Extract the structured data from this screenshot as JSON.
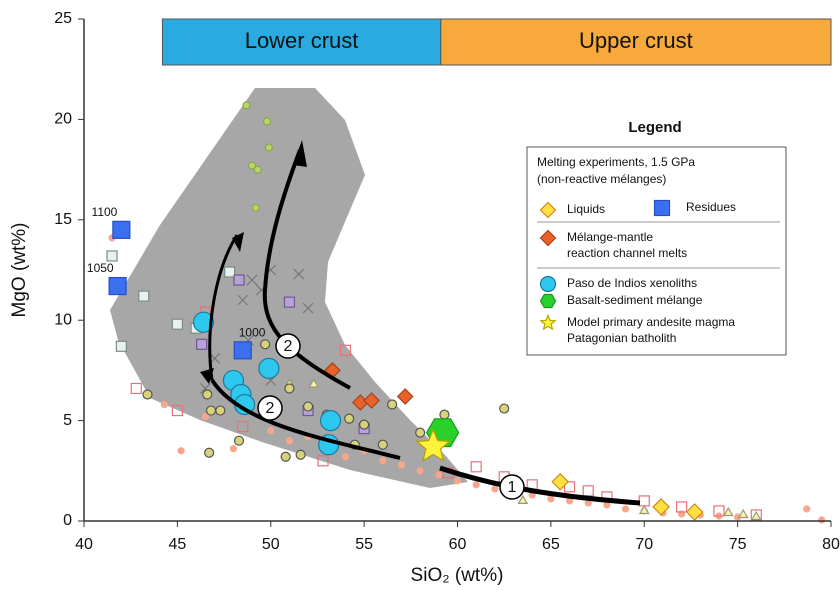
{
  "chart_data": {
    "type": "scatter",
    "xlabel": "SiO₂ (wt%)",
    "ylabel": "MgO (wt%)",
    "xlim": [
      40,
      80
    ],
    "ylim": [
      0,
      25
    ],
    "xticks": [
      40,
      45,
      50,
      55,
      60,
      65,
      70,
      75,
      80
    ],
    "yticks": [
      0,
      5,
      10,
      15,
      20,
      25
    ],
    "regions": [
      {
        "label": "Lower crust",
        "color": "#29abe2",
        "xlim": [
          44.2,
          59.1
        ]
      },
      {
        "label": "Upper crust",
        "color": "#f7a93b",
        "xlim": [
          59.1,
          80
        ]
      }
    ],
    "annotations": [
      "1",
      "2",
      "2"
    ],
    "legend_title": "Legend",
    "legend_note": [
      "Melting experiments, 1.5 GPa",
      "(non-reactive mélanges)"
    ],
    "series": [
      {
        "color": "#f6a68c",
        "edgecolor": "#f6a68c",
        "marker": "circle",
        "size": 3,
        "x": [
          41.5,
          45.2,
          46.5,
          50,
          51,
          52,
          53,
          54,
          55,
          56,
          57,
          58,
          59,
          60,
          61,
          62,
          63,
          64,
          65,
          66,
          67,
          68,
          69,
          70,
          71,
          72,
          73,
          74,
          75,
          76,
          78.7,
          79.5,
          44.3,
          48
        ],
        "values": [
          14.1,
          3.5,
          5.2,
          4.5,
          4,
          4.2,
          3.5,
          3.2,
          3.5,
          3,
          2.8,
          2.5,
          2.3,
          2,
          1.8,
          1.6,
          1.5,
          1.3,
          1.1,
          1,
          0.9,
          0.8,
          0.6,
          0.5,
          0.4,
          0.35,
          0.3,
          0.25,
          0.2,
          0.15,
          0.6,
          0.05,
          5.8,
          3.6
        ]
      },
      {
        "color": "none",
        "edgecolor": "#e8707a",
        "marker": "square",
        "size": 5,
        "x": [
          42.8,
          45,
          54,
          59.5,
          61,
          62.5,
          64,
          66,
          67,
          68,
          70,
          72,
          74,
          76,
          46.5,
          48.5,
          52.8
        ],
        "values": [
          6.6,
          5.5,
          8.5,
          2.4,
          2.7,
          2.2,
          1.8,
          1.7,
          1.5,
          1.2,
          1,
          0.7,
          0.5,
          0.3,
          10.4,
          4.7,
          3
        ]
      },
      {
        "color": "#e9f1ef",
        "edgecolor": "#7a8a88",
        "marker": "square",
        "size": 5,
        "x": [
          41.5,
          42,
          43.2,
          45,
          47.8,
          46
        ],
        "values": [
          13.2,
          8.7,
          11.2,
          9.8,
          12.4,
          9.6
        ]
      },
      {
        "color": "#b9a3d6",
        "edgecolor": "#6d5a8f",
        "marker": "square",
        "size": 5,
        "x": [
          48.3,
          51,
          46.3,
          52,
          55
        ],
        "values": [
          12,
          10.9,
          8.8,
          5.5,
          4.6
        ]
      },
      {
        "color": "#777777",
        "edgecolor": "#777777",
        "marker": "cross",
        "size": 5,
        "x": [
          49,
          49.5,
          50,
          51.5,
          48.5,
          52,
          48.8,
          50,
          46.5,
          47
        ],
        "values": [
          12,
          11.5,
          12.5,
          12.3,
          11,
          10.6,
          9,
          7,
          6.6,
          8.1
        ]
      },
      {
        "color": "#f7f3a6",
        "edgecolor": "#999977",
        "marker": "triangle",
        "size": 5,
        "x": [
          51,
          52.3,
          63.5,
          70,
          74.5,
          75.3,
          76
        ],
        "values": [
          6.8,
          6.8,
          1,
          0.5,
          0.4,
          0.3,
          0.2
        ]
      },
      {
        "color": "#b5d66b",
        "edgecolor": "#8aa84a",
        "marker": "circle",
        "size": 3.5,
        "x": [
          48.7,
          49.8,
          49.9,
          49,
          49.3,
          49.2
        ],
        "values": [
          20.7,
          19.9,
          18.6,
          17.7,
          17.5,
          15.6
        ]
      },
      {
        "color": "#d8d27a",
        "edgecolor": "#555555",
        "marker": "circle",
        "size": 4.5,
        "x": [
          46.8,
          47.3,
          46.6,
          48.3,
          46.7,
          49.7,
          51,
          52,
          53,
          54.2,
          55,
          54.5,
          56,
          58,
          59.3,
          62.5,
          43.4,
          50.8,
          51.6,
          56.5
        ],
        "values": [
          5.5,
          5.5,
          6.3,
          4,
          3.4,
          8.8,
          6.6,
          5.7,
          5.3,
          5.1,
          4.8,
          3.8,
          3.8,
          4.4,
          5.3,
          5.6,
          6.3,
          3.2,
          3.3,
          5.8
        ]
      },
      {
        "name": "Liquids",
        "color": "#ffe040",
        "edgecolor": "#d08a1a",
        "marker": "diamond",
        "size": 8,
        "x": [
          65.5,
          70.9,
          72.7
        ],
        "values": [
          1.95,
          0.7,
          0.45
        ]
      },
      {
        "name": "Residues",
        "color": "#3a6ff0",
        "edgecolor": "#2a50c0",
        "marker": "square",
        "size": 8.5,
        "x": [
          42,
          41.8,
          48.5
        ],
        "values": [
          14.5,
          11.7,
          8.5
        ],
        "point_labels": [
          "1100",
          "1050",
          "1000"
        ]
      },
      {
        "name": [
          "Mélange-mantle",
          "reaction channel melts"
        ],
        "color": "#e8632a",
        "edgecolor": "#a8401a",
        "marker": "diamond",
        "size": 7.5,
        "x": [
          53.3,
          54.8,
          55.4,
          57.2
        ],
        "values": [
          7.5,
          5.9,
          6,
          6.2
        ]
      },
      {
        "name": "Paso de Indios xenoliths",
        "color": "#2ec8ef",
        "edgecolor": "#1a7a99",
        "marker": "circle",
        "size": 10,
        "x": [
          46.4,
          48,
          48.4,
          48.6,
          49.9,
          53.2,
          53.1
        ],
        "values": [
          9.9,
          7,
          6.3,
          5.8,
          7.6,
          5,
          3.8
        ]
      },
      {
        "name": "Basalt-sediment mélange",
        "color": "#2ad12a",
        "edgecolor": "#1a9a1a",
        "marker": "hexagon",
        "size": 16,
        "x": [
          59.2
        ],
        "values": [
          4.4
        ]
      },
      {
        "name": [
          "Model primary andesite magma",
          "Patagonian batholith"
        ],
        "color": "#fff23a",
        "edgecolor": "#b8a000",
        "marker": "star",
        "size": 17,
        "x": [
          58.7
        ],
        "values": [
          3.7
        ]
      }
    ]
  }
}
